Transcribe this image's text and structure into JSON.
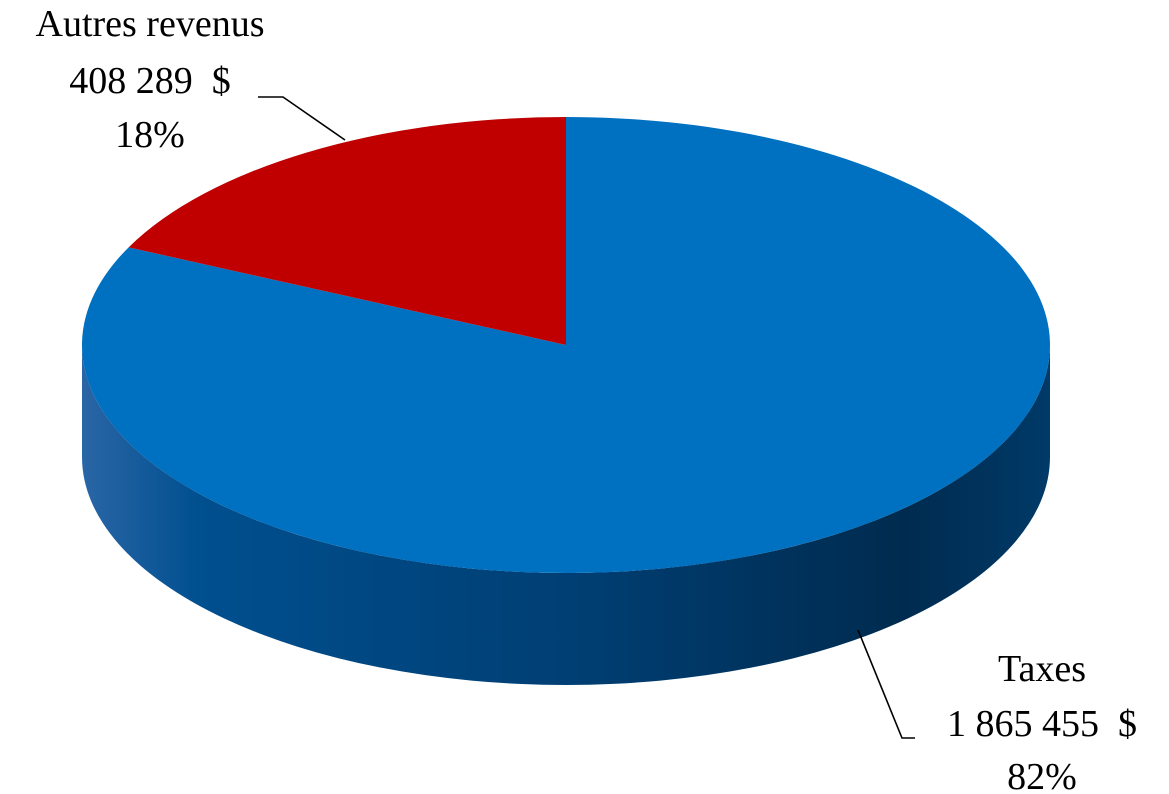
{
  "chart_data": {
    "type": "pie",
    "style": "3d",
    "slices": [
      {
        "category": "Taxes",
        "value_label": "1 865 455  $",
        "value": 1865455,
        "percent_label": "82%",
        "percent": 82,
        "color": "#0070C0"
      },
      {
        "category": "Autres revenus",
        "value_label": "408 289  $",
        "value": 408289,
        "percent_label": "18%",
        "percent": 18,
        "color": "#C00000"
      }
    ],
    "legend": "none"
  }
}
